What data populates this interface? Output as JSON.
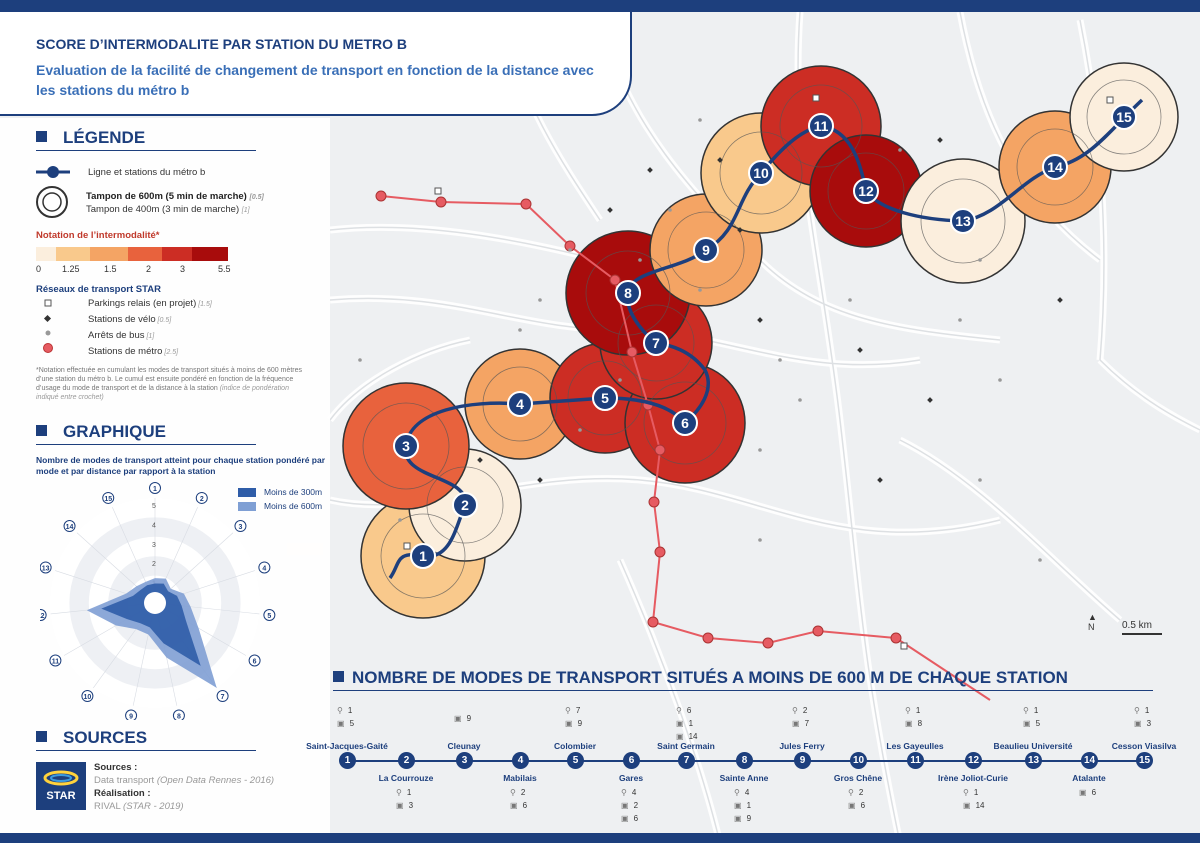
{
  "title": "SCORE D’INTERMODALITE PAR STATION DU METRO B",
  "subtitle": "Evaluation de la facilité de changement de transport en fonction de la distance avec les stations du métro b",
  "legend": {
    "heading": "LÉGENDE",
    "line_label": "Ligne et stations du métro b",
    "buffer600": "Tampon de 600m (5 min de marche)",
    "buffer600_w": "[0.5]",
    "buffer400": "Tampon de 400m (3 min de marche)",
    "buffer400_w": "[1]",
    "rating_title": "Notation de l’intermodalité*",
    "ramp_labels": [
      "0",
      "1.25",
      "1.5",
      "2",
      "3",
      "5.5"
    ],
    "ramp_colors": [
      "#fbeedd",
      "#f9c98c",
      "#f4a464",
      "#e8623d",
      "#cc2d24",
      "#a80c0c"
    ],
    "networks_title": "Réseaux de transport STAR",
    "networks": [
      {
        "label": "Parkings relais (en projet)",
        "w": "[1.5]"
      },
      {
        "label": "Stations de vélo",
        "w": "[0.5]"
      },
      {
        "label": "Arrêts de bus",
        "w": "[1]"
      },
      {
        "label": "Stations de métro",
        "w": "[2.5]"
      }
    ],
    "note": "*Notation effectuée en cumulant les modes de transport situés à moins de 600 mètres d’une station du métro b. Le cumul est ensuite pondéré en fonction de la fréquence d’usage du mode de transport et de la distance à la station",
    "note_it": "(indice de pondération indiqué entre crochet)"
  },
  "graph": {
    "heading": "GRAPHIQUE",
    "note": "Nombre de modes de transport atteint pour chaque station pondéré par mode et par distance par rapport à la station",
    "legend": [
      "Moins de 300m",
      "Moins de 600m"
    ],
    "ring_labels": [
      "1",
      "2",
      "3",
      "4",
      "5"
    ],
    "axis_labels": [
      "1",
      "2",
      "3",
      "4",
      "5",
      "6",
      "7",
      "8",
      "9",
      "10",
      "11",
      "12",
      "13",
      "14",
      "15"
    ]
  },
  "sources": {
    "heading": "SOURCES",
    "s_label": "Sources :",
    "s_value": "Data transport",
    "s_it": "(Open Data Rennes - 2016)",
    "r_label": "Réalisation :",
    "r_value": "RIVAL",
    "r_it": "(STAR - 2019)",
    "logo": "STAR"
  },
  "map": {
    "north": "N",
    "scale": "0.5 km",
    "stations": [
      {
        "n": "1",
        "score": 1.5
      },
      {
        "n": "2",
        "score": 1.1
      },
      {
        "n": "3",
        "score": 2.3
      },
      {
        "n": "4",
        "score": 1.6
      },
      {
        "n": "5",
        "score": 3.2
      },
      {
        "n": "6",
        "score": 3.3
      },
      {
        "n": "7",
        "score": 5.0
      },
      {
        "n": "8",
        "score": 5.5
      },
      {
        "n": "9",
        "score": 2.0
      },
      {
        "n": "10",
        "score": 1.5
      },
      {
        "n": "11",
        "score": 3.1
      },
      {
        "n": "12",
        "score": 5.5
      },
      {
        "n": "13",
        "score": 1.1
      },
      {
        "n": "14",
        "score": 1.6
      },
      {
        "n": "15",
        "score": 1.1
      }
    ]
  },
  "bottom": {
    "heading": "NOMBRE DE MODES DE TRANSPORT SITUÉS A MOINS DE 600 M DE CHAQUE STATION",
    "stations": [
      {
        "n": "1",
        "name": "Saint-Jacques-Gaité",
        "top": true,
        "c": [
          "1",
          "5"
        ]
      },
      {
        "n": "2",
        "name": "La Courrouze",
        "top": false,
        "c": [
          "1",
          "3"
        ]
      },
      {
        "n": "3",
        "name": "Cleunay",
        "top": true,
        "c": [
          "9"
        ]
      },
      {
        "n": "4",
        "name": "Mabilais",
        "top": false,
        "c": [
          "2",
          "6"
        ]
      },
      {
        "n": "5",
        "name": "Colombier",
        "top": true,
        "c": [
          "7",
          "9"
        ]
      },
      {
        "n": "6",
        "name": "Gares",
        "top": false,
        "c": [
          "4",
          "2",
          "6"
        ]
      },
      {
        "n": "7",
        "name": "Saint Germain",
        "top": true,
        "c": [
          "6",
          "1",
          "14"
        ]
      },
      {
        "n": "8",
        "name": "Sainte Anne",
        "top": false,
        "c": [
          "4",
          "1",
          "9"
        ]
      },
      {
        "n": "9",
        "name": "Jules Ferry",
        "top": true,
        "c": [
          "2",
          "7"
        ]
      },
      {
        "n": "10",
        "name": "Gros Chêne",
        "top": false,
        "c": [
          "2",
          "6"
        ]
      },
      {
        "n": "11",
        "name": "Les Gayeulles",
        "top": true,
        "c": [
          "1",
          "8"
        ]
      },
      {
        "n": "12",
        "name": "Irène Joliot-Curie",
        "top": false,
        "c": [
          "1",
          "14"
        ]
      },
      {
        "n": "13",
        "name": "Beaulieu Université",
        "top": true,
        "c": [
          "1",
          "5"
        ]
      },
      {
        "n": "14",
        "name": "Atalante",
        "top": false,
        "c": [
          "6"
        ]
      },
      {
        "n": "15",
        "name": "Cesson Viasilva",
        "top": true,
        "c": [
          "1",
          "3"
        ]
      }
    ]
  }
}
